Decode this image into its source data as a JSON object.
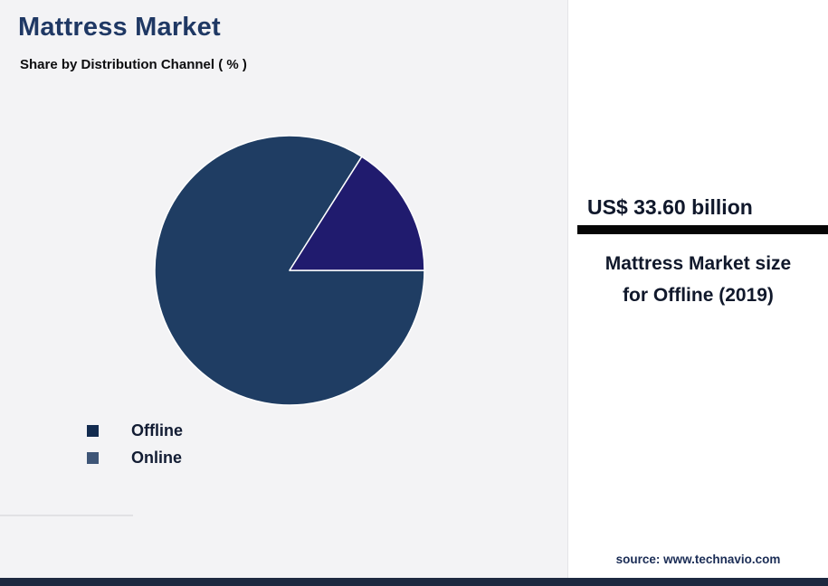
{
  "header": {
    "title": "Mattress Market",
    "subtitle": "Share by Distribution Channel ( % )"
  },
  "chart_data": {
    "type": "pie",
    "title": "Mattress Market",
    "subtitle": "Share by Distribution Channel ( % )",
    "unit": "%",
    "start_angle": "3-o-clock-clockwise",
    "slices": [
      {
        "label": "Offline",
        "value": 84,
        "color": "#1f3d63"
      },
      {
        "label": "Online",
        "value": 16,
        "color": "#201b6e"
      }
    ],
    "legend_position": "bottom-left"
  },
  "legend": {
    "items": [
      {
        "label": "Offline",
        "color": "#122b4f"
      },
      {
        "label": "Online",
        "color": "#3e5577"
      }
    ]
  },
  "panel": {
    "headline": "US$ 33.60 billion",
    "description": "Mattress Market size for Offline (2019)",
    "source": "source: www.technavio.com"
  },
  "colors": {
    "title_navy": "#1f3864",
    "background": "#f3f3f5",
    "panel_background": "#ffffff",
    "underline_bar": "#060606",
    "footer_bar": "#1d2940",
    "slice_divider": "#ffffff"
  }
}
